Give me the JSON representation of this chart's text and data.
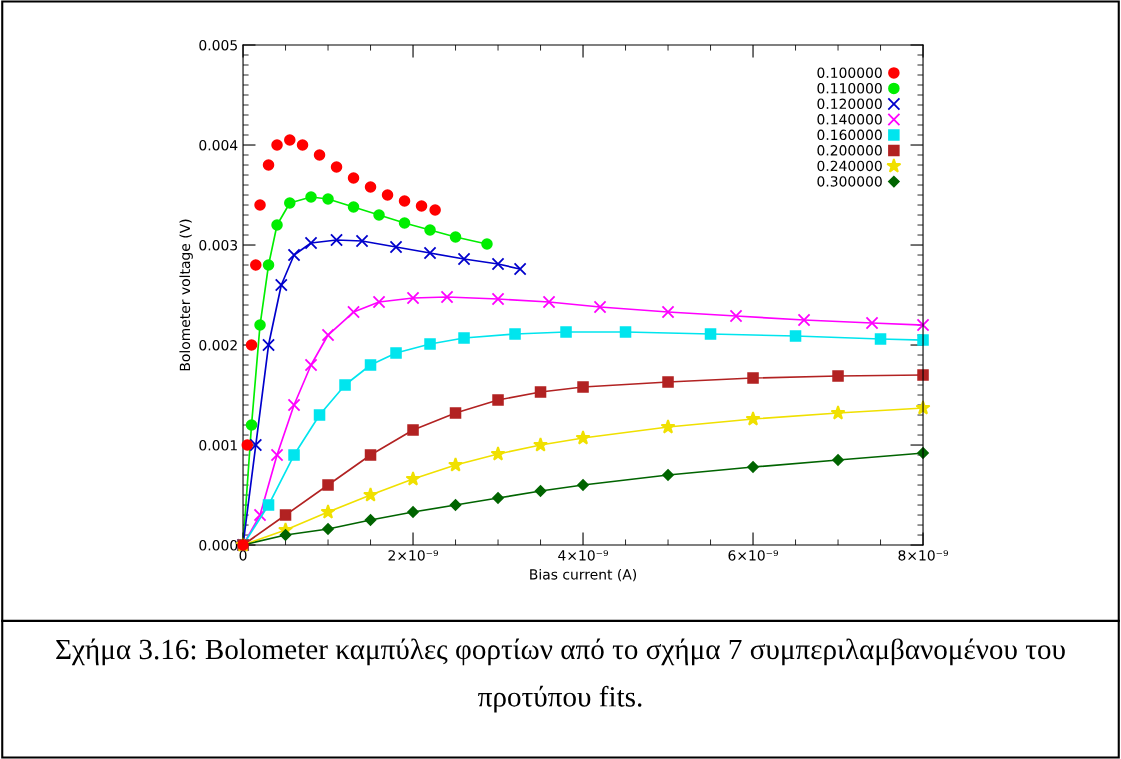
{
  "chart_data": {
    "type": "line",
    "xlabel": "Bias current (A)",
    "ylabel": "Bolometer voltage (V)",
    "annotations": [
      "Σχήμα 3.16: Bolometer καμπύλες φορτίων από το σχήμα 7 συμπεριλαμβανομένου του προτύπου fits."
    ],
    "xlim": [
      0,
      8e-09
    ],
    "ylim": [
      0,
      0.005
    ],
    "xticks": [
      {
        "value": 0,
        "label": "0"
      },
      {
        "value": 2e-09,
        "label": "2×10⁻⁹"
      },
      {
        "value": 4e-09,
        "label": "4×10⁻⁹"
      },
      {
        "value": 6e-09,
        "label": "6×10⁻⁹"
      },
      {
        "value": 8e-09,
        "label": "8×10⁻⁹"
      }
    ],
    "yticks": [
      {
        "value": 0,
        "label": "0.000"
      },
      {
        "value": 0.001,
        "label": "0.001"
      },
      {
        "value": 0.002,
        "label": "0.002"
      },
      {
        "value": 0.003,
        "label": "0.003"
      },
      {
        "value": 0.004,
        "label": "0.004"
      },
      {
        "value": 0.005,
        "label": "0.005"
      }
    ],
    "grid": false,
    "legend": "top right",
    "series": [
      {
        "name": "0.100000",
        "color": "#ff0000",
        "type": "scatter",
        "marker": "circle",
        "x": [
          0,
          5e-11,
          1e-10,
          1.5e-10,
          2e-10,
          3e-10,
          4e-10,
          5.5e-10,
          7e-10,
          9e-10,
          1.1e-09,
          1.3e-09,
          1.5e-09,
          1.7e-09,
          1.9e-09,
          2.1e-09,
          2.26e-09
        ],
        "values": [
          0,
          0.001,
          0.002,
          0.0028,
          0.0034,
          0.0038,
          0.004,
          0.00405,
          0.004,
          0.0039,
          0.00378,
          0.00367,
          0.00358,
          0.0035,
          0.00344,
          0.00339,
          0.00335
        ]
      },
      {
        "name": "0.110000",
        "color": "#00ee00",
        "marker": "circle",
        "line_style": "solid",
        "x": [
          0,
          1e-10,
          2e-10,
          3e-10,
          4e-10,
          5.5e-10,
          8e-10,
          1e-09,
          1.3e-09,
          1.6e-09,
          1.9e-09,
          2.2e-09,
          2.5e-09,
          2.87e-09
        ],
        "values": [
          0,
          0.0012,
          0.0022,
          0.0028,
          0.0032,
          0.00342,
          0.00348,
          0.00346,
          0.00338,
          0.0033,
          0.00322,
          0.00315,
          0.00308,
          0.00301
        ]
      },
      {
        "name": "0.120000",
        "color": "#0000cc",
        "marker": "cross",
        "line_style": "solid",
        "x": [
          0,
          1.5e-10,
          3e-10,
          4.5e-10,
          6e-10,
          8e-10,
          1.1e-09,
          1.4e-09,
          1.8e-09,
          2.2e-09,
          2.6e-09,
          3e-09,
          3.26e-09
        ],
        "values": [
          0,
          0.001,
          0.002,
          0.0026,
          0.0029,
          0.00302,
          0.00305,
          0.00304,
          0.00298,
          0.00292,
          0.00286,
          0.00281,
          0.00276
        ]
      },
      {
        "name": "0.140000",
        "color": "#ff00ff",
        "marker": "cross",
        "line_style": "solid",
        "x": [
          0,
          2e-10,
          4e-10,
          6e-10,
          8e-10,
          1e-09,
          1.3e-09,
          1.6e-09,
          2e-09,
          2.4e-09,
          3e-09,
          3.6e-09,
          4.2e-09,
          5e-09,
          5.8e-09,
          6.6e-09,
          7.4e-09,
          8e-09
        ],
        "values": [
          0,
          0.0003,
          0.0009,
          0.0014,
          0.0018,
          0.0021,
          0.00233,
          0.00243,
          0.00247,
          0.00248,
          0.00246,
          0.00243,
          0.00238,
          0.00233,
          0.00229,
          0.00225,
          0.00222,
          0.0022
        ]
      },
      {
        "name": "0.160000",
        "color": "#00e5ee",
        "marker": "square",
        "line_style": "solid",
        "x": [
          0,
          3e-10,
          6e-10,
          9e-10,
          1.2e-09,
          1.5e-09,
          1.8e-09,
          2.2e-09,
          2.6e-09,
          3.2e-09,
          3.8e-09,
          4.5e-09,
          5.5e-09,
          6.5e-09,
          7.5e-09,
          8e-09
        ],
        "values": [
          0,
          0.0004,
          0.0009,
          0.0013,
          0.0016,
          0.0018,
          0.00192,
          0.00201,
          0.00207,
          0.00211,
          0.00213,
          0.00213,
          0.00211,
          0.00209,
          0.00206,
          0.00205
        ]
      },
      {
        "name": "0.200000",
        "color": "#b22222",
        "marker": "square",
        "line_style": "solid",
        "x": [
          0,
          5e-10,
          1e-09,
          1.5e-09,
          2e-09,
          2.5e-09,
          3e-09,
          3.5e-09,
          4e-09,
          5e-09,
          6e-09,
          7e-09,
          8e-09
        ],
        "values": [
          0,
          0.0003,
          0.0006,
          0.0009,
          0.00115,
          0.00132,
          0.00145,
          0.00153,
          0.00158,
          0.00163,
          0.00167,
          0.00169,
          0.0017
        ]
      },
      {
        "name": "0.240000",
        "color": "#f0e000",
        "marker": "star",
        "line_style": "solid",
        "x": [
          0,
          5e-10,
          1e-09,
          1.5e-09,
          2e-09,
          2.5e-09,
          3e-09,
          3.5e-09,
          4e-09,
          5e-09,
          6e-09,
          7e-09,
          8e-09
        ],
        "values": [
          0,
          0.00015,
          0.00033,
          0.0005,
          0.00066,
          0.0008,
          0.00091,
          0.001,
          0.00107,
          0.00118,
          0.00126,
          0.00132,
          0.00137
        ]
      },
      {
        "name": "0.300000",
        "color": "#006400",
        "marker": "diamond",
        "line_style": "solid",
        "x": [
          0,
          5e-10,
          1e-09,
          1.5e-09,
          2e-09,
          2.5e-09,
          3e-09,
          3.5e-09,
          4e-09,
          5e-09,
          6e-09,
          7e-09,
          8e-09
        ],
        "values": [
          0,
          0.0001,
          0.00016,
          0.00025,
          0.00033,
          0.0004,
          0.00047,
          0.00054,
          0.0006,
          0.0007,
          0.00078,
          0.00085,
          0.00092
        ]
      }
    ]
  }
}
